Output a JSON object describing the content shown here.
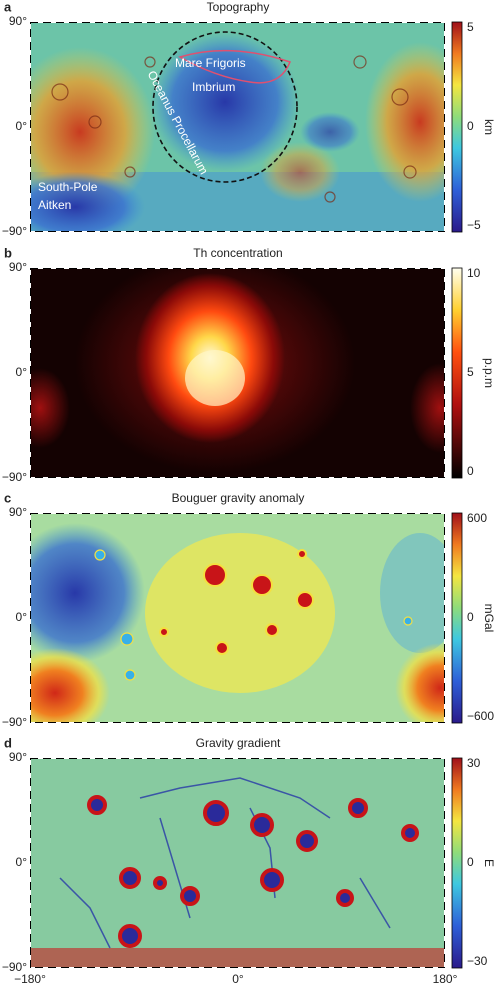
{
  "panels": [
    {
      "letter": "a",
      "title": "Topography",
      "ylabels": [
        "90°",
        "0°",
        "−90°"
      ],
      "colorbar_ticks": [
        "5",
        "0",
        "−5"
      ],
      "unit": "km",
      "annotations": {
        "mare_frigoris": "Mare Frigoris",
        "imbrium": "Imbrium",
        "procellarum": "Oceanus Procellarum",
        "spa": [
          "South-Pole",
          "Aitken"
        ]
      }
    },
    {
      "letter": "b",
      "title": "Th concentration",
      "ylabels": [
        "90°",
        "0°",
        "−90°"
      ],
      "colorbar_ticks": [
        "10",
        "5",
        "0"
      ],
      "unit": "p.p.m"
    },
    {
      "letter": "c",
      "title": "Bouguer gravity anomaly",
      "ylabels": [
        "90°",
        "0°",
        "−90°"
      ],
      "colorbar_ticks": [
        "600",
        "0",
        "−600"
      ],
      "unit": "mGal"
    },
    {
      "letter": "d",
      "title": "Gravity gradient",
      "ylabels": [
        "90°",
        "0°",
        "−90°"
      ],
      "colorbar_ticks": [
        "30",
        "0",
        "−30"
      ],
      "unit": "E"
    }
  ],
  "xlabels": [
    "−180°",
    "0°",
    "180°"
  ]
}
